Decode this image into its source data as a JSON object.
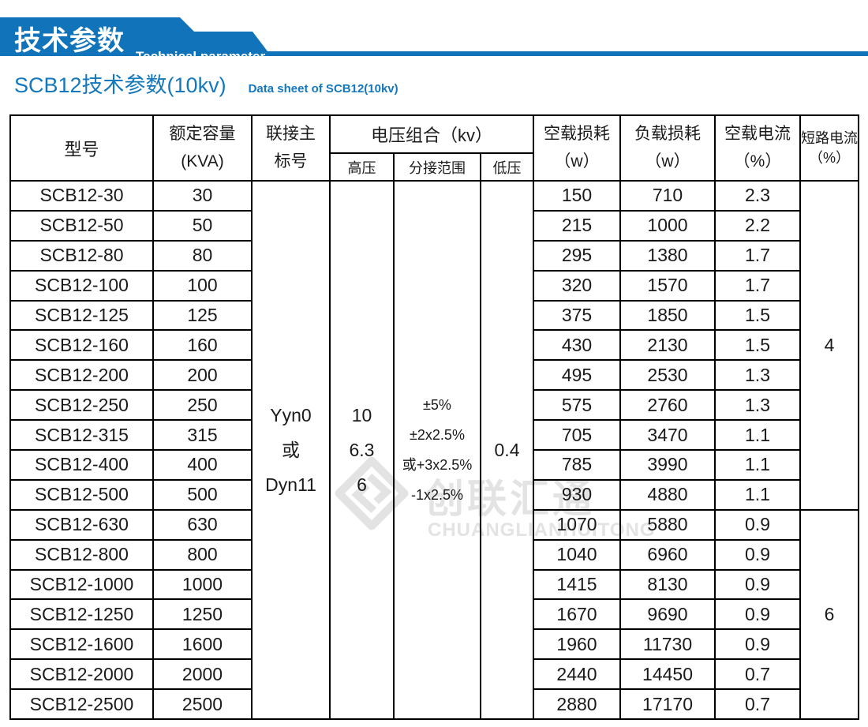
{
  "banner": {
    "title_zh": "技术参数",
    "title_en": "Technical parameter"
  },
  "subtitle": {
    "title_zh": "SCB12技术参数(10kv)",
    "title_en": "Data sheet of SCB12(10kv)"
  },
  "colors": {
    "banner_blue": "#1173b9",
    "header_bg": "#aadcf2",
    "title_blue": "#1478bd",
    "table_border": "#000000",
    "watermark_gray": "#e3e3e3"
  },
  "watermark": {
    "text_zh": "创联汇通",
    "text_en": "CHUANGLIANHUITONG"
  },
  "table": {
    "headers": {
      "model": "型号",
      "capacity": [
        "额定容量",
        "(KVA)"
      ],
      "connection": [
        "联接主",
        "标号"
      ],
      "voltage_group": "电压组合（kv）",
      "hv": "高压",
      "tap": "分接范围",
      "lv": "低压",
      "no_load_loss": [
        "空载损耗",
        "（w）"
      ],
      "load_loss": [
        "负载损耗",
        "（w）"
      ],
      "no_load_current": [
        "空载电流",
        "（%）"
      ],
      "short_circuit": [
        "短路电流",
        "（%）"
      ]
    },
    "merged": {
      "connection_lines": [
        "Yyn0",
        "或",
        "Dyn11"
      ],
      "hv_lines": [
        "10",
        "6.3",
        "6"
      ],
      "tap_lines": [
        "±5%",
        "±2x2.5%",
        "或+3x2.5%",
        "-1x2.5%"
      ],
      "lv": "0.4",
      "short_circuit_values": [
        "4",
        "6"
      ],
      "short_circuit_spans": [
        11,
        7
      ]
    },
    "rows": [
      {
        "model": "SCB12-30",
        "capacity": "30",
        "no_load_loss": "150",
        "load_loss": "710",
        "no_load_current": "2.3"
      },
      {
        "model": "SCB12-50",
        "capacity": "50",
        "no_load_loss": "215",
        "load_loss": "1000",
        "no_load_current": "2.2"
      },
      {
        "model": "SCB12-80",
        "capacity": "80",
        "no_load_loss": "295",
        "load_loss": "1380",
        "no_load_current": "1.7"
      },
      {
        "model": "SCB12-100",
        "capacity": "100",
        "no_load_loss": "320",
        "load_loss": "1570",
        "no_load_current": "1.7"
      },
      {
        "model": "SCB12-125",
        "capacity": "125",
        "no_load_loss": "375",
        "load_loss": "1850",
        "no_load_current": "1.5"
      },
      {
        "model": "SCB12-160",
        "capacity": "160",
        "no_load_loss": "430",
        "load_loss": "2130",
        "no_load_current": "1.5"
      },
      {
        "model": "SCB12-200",
        "capacity": "200",
        "no_load_loss": "495",
        "load_loss": "2530",
        "no_load_current": "1.3"
      },
      {
        "model": "SCB12-250",
        "capacity": "250",
        "no_load_loss": "575",
        "load_loss": "2760",
        "no_load_current": "1.3"
      },
      {
        "model": "SCB12-315",
        "capacity": "315",
        "no_load_loss": "705",
        "load_loss": "3470",
        "no_load_current": "1.1"
      },
      {
        "model": "SCB12-400",
        "capacity": "400",
        "no_load_loss": "785",
        "load_loss": "3990",
        "no_load_current": "1.1"
      },
      {
        "model": "SCB12-500",
        "capacity": "500",
        "no_load_loss": "930",
        "load_loss": "4880",
        "no_load_current": "1.1"
      },
      {
        "model": "SCB12-630",
        "capacity": "630",
        "no_load_loss": "1070",
        "load_loss": "5880",
        "no_load_current": "0.9"
      },
      {
        "model": "SCB12-800",
        "capacity": "800",
        "no_load_loss": "1040",
        "load_loss": "6960",
        "no_load_current": "0.9"
      },
      {
        "model": "SCB12-1000",
        "capacity": "1000",
        "no_load_loss": "1415",
        "load_loss": "8130",
        "no_load_current": "0.9"
      },
      {
        "model": "SCB12-1250",
        "capacity": "1250",
        "no_load_loss": "1670",
        "load_loss": "9690",
        "no_load_current": "0.9"
      },
      {
        "model": "SCB12-1600",
        "capacity": "1600",
        "no_load_loss": "1960",
        "load_loss": "11730",
        "no_load_current": "0.9"
      },
      {
        "model": "SCB12-2000",
        "capacity": "2000",
        "no_load_loss": "2440",
        "load_loss": "14450",
        "no_load_current": "0.7"
      },
      {
        "model": "SCB12-2500",
        "capacity": "2500",
        "no_load_loss": "2880",
        "load_loss": "17170",
        "no_load_current": "0.7"
      }
    ]
  }
}
